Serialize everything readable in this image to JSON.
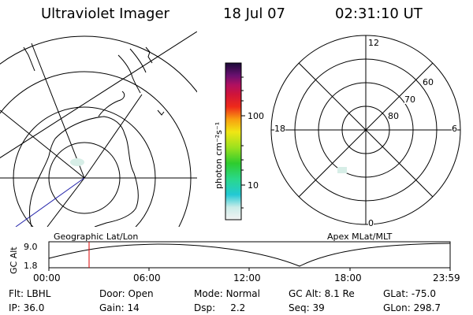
{
  "header": {
    "instrument": "Ultraviolet Imager",
    "date": "18 Jul 07",
    "time": "02:31:10 UT"
  },
  "colorbar": {
    "unit_label": "photon cm⁻²s⁻¹",
    "ticks": [
      "100",
      "10"
    ]
  },
  "polar_plot": {
    "mlt_labels": {
      "top": "12",
      "left": "18",
      "right": "6",
      "bottom": "0"
    },
    "lat_labels": [
      "60",
      "70",
      "80"
    ]
  },
  "orbit_panel": {
    "left_label": "Geographic Lat/Lon",
    "right_label": "Apex MLat/MLT",
    "axis_label": "GC Alt",
    "y_ticks": [
      "9.0",
      "1.8"
    ],
    "x_ticks": [
      "00:00",
      "06:00",
      "12:00",
      "18:00",
      "23:59"
    ],
    "current_time_marker": "02:31"
  },
  "status": {
    "row1": [
      {
        "key": "Flt:",
        "value": "LBHL"
      },
      {
        "key": "Door:",
        "value": "Open"
      },
      {
        "key": "Mode:",
        "value": "Normal"
      },
      {
        "key": "GC Alt:",
        "value": "8.1 Re"
      },
      {
        "key": "GLat:",
        "value": "-75.0"
      }
    ],
    "row2": [
      {
        "key": "IP:",
        "value": "36.0"
      },
      {
        "key": "Gain:",
        "value": "14"
      },
      {
        "key": "Dsp:",
        "value": "2.2"
      },
      {
        "key": "Seq:",
        "value": "39"
      },
      {
        "key": "GLon:",
        "value": "298.7"
      }
    ]
  }
}
